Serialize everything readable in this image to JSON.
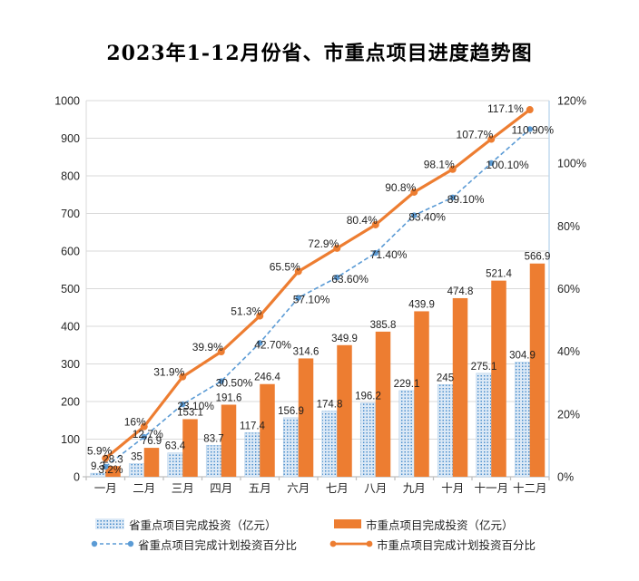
{
  "title": "2023年1-12月份省、市重点项目进度趋势图",
  "colors": {
    "municipal_orange": "#ED7D31",
    "provincial_blue": "#5B9BD5",
    "provincial_bar_fill": "#DCE9F6",
    "provincial_bar_dot": "#3E86C8",
    "gridline": "#D9D9D9",
    "axis_line": "#BFBFBF",
    "right_axis_line": "#BDD7EE",
    "label_text": "#1F1F1F"
  },
  "chart_data": {
    "type": "bar",
    "subtype": "combo-bar-line-dual-axis",
    "title": "2023年1-12月份省、市重点项目进度趋势图",
    "categories": [
      "一月",
      "二月",
      "三月",
      "四月",
      "五月",
      "六月",
      "七月",
      "八月",
      "九月",
      "十月",
      "十一月",
      "十二月"
    ],
    "series": [
      {
        "name": "省重点项目完成投资（亿元）",
        "kind": "bar",
        "axis": "left",
        "color": "#5B9BD5",
        "fill": "dotted",
        "values": [
          9.3,
          35,
          63.4,
          83.7,
          117.4,
          156.9,
          174.8,
          196.2,
          229.1,
          245,
          275.1,
          304.9
        ],
        "labels": [
          "9.3",
          "35",
          "63.4",
          "83.7",
          "117.4",
          "156.9",
          "174.8",
          "196.2",
          "229.1",
          "245",
          "275.1",
          "304.9"
        ]
      },
      {
        "name": "市重点项目完成投资（亿元）",
        "kind": "bar",
        "axis": "left",
        "color": "#ED7D31",
        "fill": "solid",
        "values": [
          28.3,
          76.9,
          153.1,
          191.6,
          246.4,
          314.6,
          349.9,
          385.8,
          439.9,
          474.8,
          521.4,
          566.9
        ],
        "labels": [
          "28.3",
          "76.9",
          "153.1",
          "191.6",
          "246.4",
          "314.6",
          "349.9",
          "385.8",
          "439.9",
          "474.8",
          "521.4",
          "566.9"
        ]
      },
      {
        "name": "省重点项目完成计划投资百分比",
        "kind": "line",
        "style": "dashed",
        "axis": "right",
        "color": "#5B9BD5",
        "values": [
          3.2,
          12.7,
          23.1,
          30.5,
          42.7,
          57.1,
          63.6,
          71.4,
          83.4,
          89.1,
          100.1,
          110.9
        ],
        "labels": [
          "3.2%",
          "12.7%",
          "23.10%",
          "30.50%",
          "42.70%",
          "57.10%",
          "63.60%",
          "71.40%",
          "83.40%",
          "89.10%",
          "100.10%",
          "110.90%"
        ]
      },
      {
        "name": "市重点项目完成计划投资百分比",
        "kind": "line",
        "style": "solid",
        "axis": "right",
        "color": "#ED7D31",
        "values": [
          5.9,
          16,
          31.9,
          39.9,
          51.3,
          65.5,
          72.9,
          80.4,
          90.8,
          98.1,
          107.7,
          117.1
        ],
        "labels": [
          "5.9%",
          "16%",
          "31.9%",
          "39.9%",
          "51.3%",
          "65.5%",
          "72.9%",
          "80.4%",
          "90.8%",
          "98.1%",
          "107.7%",
          "117.1%"
        ]
      }
    ],
    "left_axis": {
      "min": 0,
      "max": 1000,
      "step": 100,
      "tick_labels": [
        "0",
        "100",
        "200",
        "300",
        "400",
        "500",
        "600",
        "700",
        "800",
        "900",
        "1000"
      ]
    },
    "right_axis": {
      "min": 0,
      "max": 120,
      "step": 20,
      "tick_labels": [
        "0%",
        "20%",
        "40%",
        "60%",
        "80%",
        "100%",
        "120%"
      ]
    },
    "grid": true,
    "legend_position": "bottom"
  },
  "legend": {
    "items": [
      {
        "label": "省重点项目完成投资（亿元）",
        "swatch": "dotted-bar"
      },
      {
        "label": "市重点项目完成投资（亿元）",
        "swatch": "solid-bar"
      },
      {
        "label": "省重点项目完成计划投资百分比",
        "swatch": "dashed-line"
      },
      {
        "label": "市重点项目完成计划投资百分比",
        "swatch": "solid-line"
      }
    ]
  }
}
